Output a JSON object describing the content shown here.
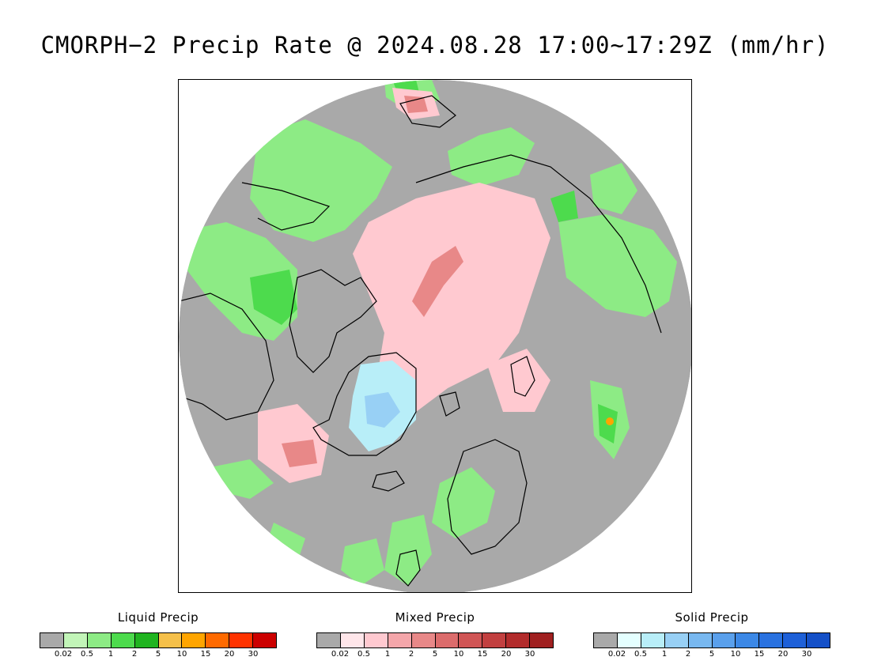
{
  "title": "CMORPH−2 Precip Rate @ 2024.08.28 17:00~17:29Z (mm/hr)",
  "map": {
    "colors": {
      "background": "#ffffff",
      "no_precip": "#a9a9a9",
      "coastline": "#000000"
    }
  },
  "legends": [
    {
      "title": "Liquid Precip",
      "ticks": [
        "0.02",
        "0.5",
        "1",
        "2",
        "5",
        "10",
        "15",
        "20",
        "30"
      ],
      "colors": [
        "#a9a9a9",
        "#c2f5b8",
        "#8deb85",
        "#4ddb4d",
        "#20b420",
        "#f5c04a",
        "#ffa500",
        "#ff6a00",
        "#ff3300",
        "#cc0000"
      ]
    },
    {
      "title": "Mixed Precip",
      "ticks": [
        "0.02",
        "0.5",
        "1",
        "2",
        "5",
        "10",
        "15",
        "20",
        "30"
      ],
      "colors": [
        "#a9a9a9",
        "#ffe6ea",
        "#ffc9d0",
        "#f4a6aa",
        "#e88888",
        "#dc6c6c",
        "#d05555",
        "#c24040",
        "#b22c2c",
        "#a02020"
      ]
    },
    {
      "title": "Solid Precip",
      "ticks": [
        "0.02",
        "0.5",
        "1",
        "2",
        "5",
        "10",
        "15",
        "20",
        "30"
      ],
      "colors": [
        "#a9a9a9",
        "#e4ffff",
        "#b8eef8",
        "#98d0f5",
        "#78b8f0",
        "#5aa0ec",
        "#3c88e6",
        "#2a72e0",
        "#1e60d8",
        "#1450c8"
      ]
    }
  ]
}
